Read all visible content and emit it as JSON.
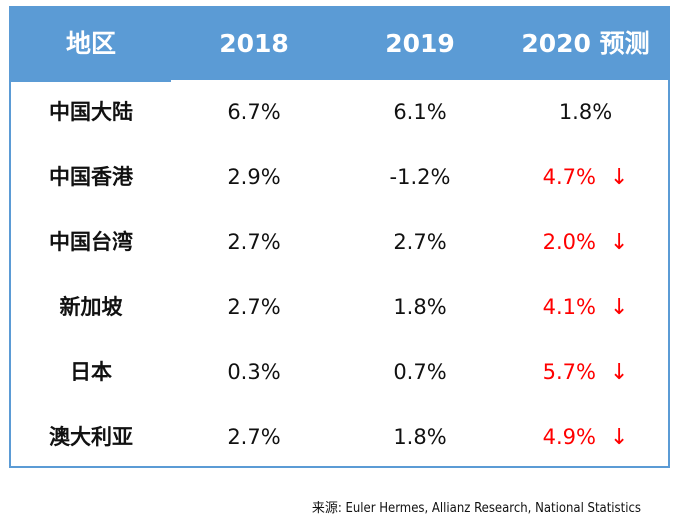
{
  "header": {
    "col0": "地区",
    "col1": "2018",
    "col2": "2019",
    "col3": "2020 预测"
  },
  "rows": [
    {
      "region": "中国大陆",
      "y2018": "6.7%",
      "y2019": "6.1%",
      "y2020": "1.8%",
      "down": false,
      "arrow": ""
    },
    {
      "region": "中国香港",
      "y2018": "2.9%",
      "y2019": "-1.2%",
      "y2020": "4.7%",
      "down": true,
      "arrow": "↓"
    },
    {
      "region": "中国台湾",
      "y2018": "2.7%",
      "y2019": "2.7%",
      "y2020": "2.0%",
      "down": true,
      "arrow": "↓"
    },
    {
      "region": "新加坡",
      "y2018": "2.7%",
      "y2019": "1.8%",
      "y2020": "4.1%",
      "down": true,
      "arrow": "↓"
    },
    {
      "region": "日本",
      "y2018": "0.3%",
      "y2019": "0.7%",
      "y2020": "5.7%",
      "down": true,
      "arrow": "↓"
    },
    {
      "region": "澳大利亚",
      "y2018": "2.7%",
      "y2019": "1.8%",
      "y2020": "4.9%",
      "down": true,
      "arrow": "↓"
    }
  ],
  "source": "来源: Euler Hermes, Allianz Research, National Statistics",
  "colors": {
    "header_bg": "#5b9bd5",
    "header_text": "#ffffff",
    "decline": "#ff0000"
  },
  "icons": {
    "decline_arrow": "arrow-down-icon"
  }
}
